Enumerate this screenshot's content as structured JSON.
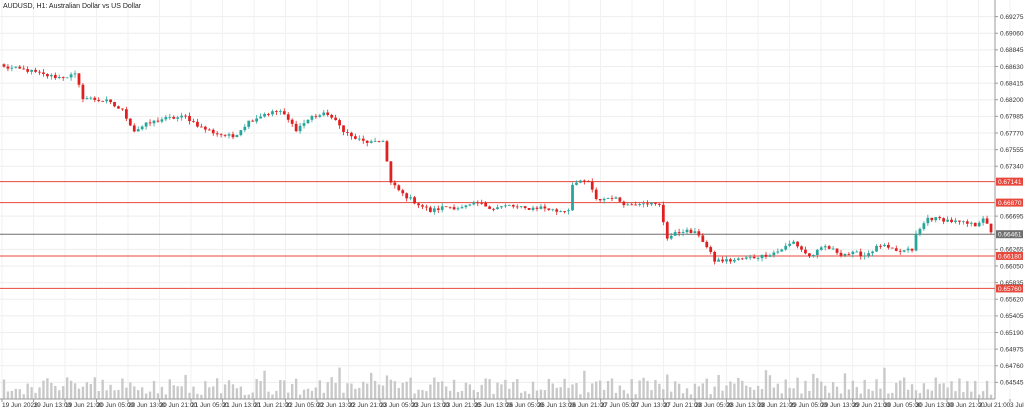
{
  "chart_data": {
    "type": "candlestick",
    "title": "AUDUSD, H1:  Australian Dollar vs US Dollar",
    "y_ticks": [
      "0.69275",
      "0.69060",
      "0.68845",
      "0.68630",
      "0.68415",
      "0.68200",
      "0.67985",
      "0.67770",
      "0.67555",
      "0.67340",
      "0.66695",
      "0.66265",
      "0.66050",
      "0.65835",
      "0.65620",
      "0.65405",
      "0.65190",
      "0.64975",
      "0.64760",
      "0.64545"
    ],
    "y_tick_values": [
      0.69275,
      0.6906,
      0.68845,
      0.6863,
      0.68415,
      0.682,
      0.67985,
      0.6777,
      0.67555,
      0.6734,
      0.66695,
      0.66265,
      0.6605,
      0.65835,
      0.6562,
      0.65405,
      0.6519,
      0.64975,
      0.6476,
      0.64545
    ],
    "ylim": [
      0.6433,
      0.6949
    ],
    "x_ticks": [
      "19 Jun 2023",
      "19 Jun 13:00",
      "19 Jun 21:00",
      "20 Jun 05:00",
      "20 Jun 13:00",
      "20 Jun 21:00",
      "21 Jun 05:00",
      "21 Jun 13:00",
      "21 Jun 21:00",
      "22 Jun 05:00",
      "22 Jun 13:00",
      "22 Jun 21:00",
      "23 Jun 05:00",
      "23 Jun 13:00",
      "23 Jun 21:00",
      "25 Jun 13:00",
      "26 Jun 05:00",
      "26 Jun 13:00",
      "26 Jun 21:00",
      "27 Jun 05:00",
      "27 Jun 13:00",
      "27 Jun 21:00",
      "28 Jun 05:00",
      "28 Jun 13:00",
      "28 Jun 21:00",
      "29 Jun 05:00",
      "29 Jun 13:00",
      "29 Jun 21:00",
      "30 Jun 05:00",
      "30 Jun 13:00",
      "30 Jun 21:00",
      "2 Jul 21:00",
      "3 Jul 05:00"
    ],
    "levels": [
      {
        "label": "0.67141",
        "value": 0.67141,
        "color": "#e8473c"
      },
      {
        "label": "0.66870",
        "value": 0.6687,
        "color": "#e8473c"
      },
      {
        "label": "0.66461",
        "value": 0.66461,
        "color": "#6e6e6e"
      },
      {
        "label": "0.66180",
        "value": 0.6618,
        "color": "#e8473c"
      },
      {
        "label": "0.65760",
        "value": 0.6576,
        "color": "#e8473c"
      }
    ],
    "up_color": "#26a69a",
    "down_color": "#e02020",
    "volume_color": "#c9c9c9",
    "grid": true,
    "close_path": [
      [
        0,
        0.6862
      ],
      [
        6,
        0.6858
      ],
      [
        10,
        0.6852
      ],
      [
        14,
        0.6849
      ],
      [
        18,
        0.6852
      ],
      [
        20,
        0.6823
      ],
      [
        26,
        0.6818
      ],
      [
        30,
        0.6806
      ],
      [
        33,
        0.678
      ],
      [
        36,
        0.6788
      ],
      [
        40,
        0.6795
      ],
      [
        46,
        0.6798
      ],
      [
        50,
        0.6784
      ],
      [
        54,
        0.6776
      ],
      [
        58,
        0.6772
      ],
      [
        62,
        0.6792
      ],
      [
        66,
        0.6802
      ],
      [
        70,
        0.6805
      ],
      [
        74,
        0.6782
      ],
      [
        78,
        0.6798
      ],
      [
        82,
        0.6802
      ],
      [
        86,
        0.6781
      ],
      [
        88,
        0.6772
      ],
      [
        91,
        0.6766
      ],
      [
        94,
        0.6764
      ],
      [
        96,
        0.6768
      ],
      [
        98,
        0.6712
      ],
      [
        101,
        0.6698
      ],
      [
        105,
        0.6685
      ],
      [
        108,
        0.6676
      ],
      [
        112,
        0.6682
      ],
      [
        116,
        0.668
      ],
      [
        120,
        0.6686
      ],
      [
        124,
        0.668
      ],
      [
        128,
        0.6683
      ],
      [
        132,
        0.6679
      ],
      [
        136,
        0.6681
      ],
      [
        140,
        0.6676
      ],
      [
        143,
        0.6678
      ],
      [
        144,
        0.6712
      ],
      [
        148,
        0.6714
      ],
      [
        150,
        0.669
      ],
      [
        154,
        0.6694
      ],
      [
        158,
        0.6684
      ],
      [
        162,
        0.6688
      ],
      [
        166,
        0.6683
      ],
      [
        168,
        0.6642
      ],
      [
        172,
        0.6651
      ],
      [
        176,
        0.6646
      ],
      [
        180,
        0.6612
      ],
      [
        184,
        0.6612
      ],
      [
        188,
        0.6615
      ],
      [
        192,
        0.6618
      ],
      [
        196,
        0.6624
      ],
      [
        200,
        0.6636
      ],
      [
        204,
        0.6617
      ],
      [
        208,
        0.663
      ],
      [
        212,
        0.6621
      ],
      [
        216,
        0.6621
      ],
      [
        218,
        0.6619
      ],
      [
        222,
        0.6632
      ],
      [
        226,
        0.6623
      ],
      [
        230,
        0.6626
      ],
      [
        231,
        0.6645
      ],
      [
        234,
        0.6667
      ],
      [
        238,
        0.6665
      ],
      [
        242,
        0.6661
      ],
      [
        246,
        0.6658
      ],
      [
        248,
        0.6668
      ],
      [
        250,
        0.6647
      ]
    ]
  }
}
